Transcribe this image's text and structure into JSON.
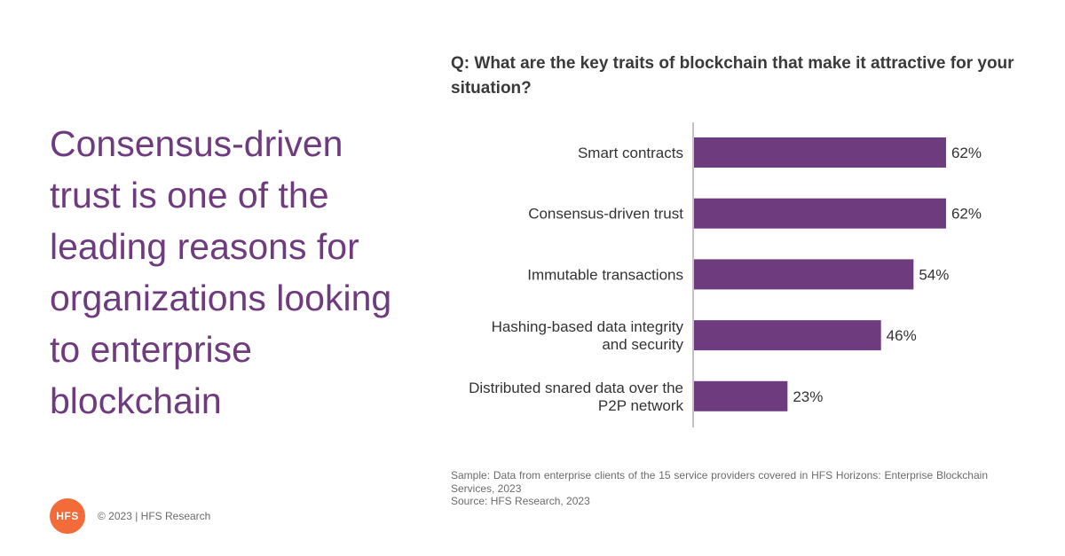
{
  "headline": "Consensus-driven trust is one of the leading reasons for organizations looking to enterprise blockchain",
  "question": "Q: What are the key traits of blockchain that make it attractive for your situation?",
  "chart_data": {
    "type": "bar",
    "orientation": "horizontal",
    "categories": [
      [
        "Smart contracts"
      ],
      [
        "Consensus-driven trust"
      ],
      [
        "Immutable transactions"
      ],
      [
        "Hashing-based data integrity",
        "and security"
      ],
      [
        "Distributed snared data over the",
        "P2P network"
      ]
    ],
    "values": [
      62,
      62,
      54,
      46,
      23
    ],
    "value_labels": [
      "62%",
      "62%",
      "54%",
      "46%",
      "23%"
    ],
    "xlim": [
      0,
      100
    ],
    "color": "#6e3b7e",
    "grid": false,
    "legend": "none"
  },
  "notes": {
    "sample": "Sample: Data from enterprise clients of the 15 service providers covered in HFS Horizons: Enterprise Blockchain Services, 2023",
    "source": "Source: HFS Research, 2023"
  },
  "footer": {
    "logo_text": "HFS",
    "copyright": "© 2023 | HFS Research"
  },
  "colors": {
    "accent": "#6e3b7e",
    "logo": "#f26b38"
  }
}
